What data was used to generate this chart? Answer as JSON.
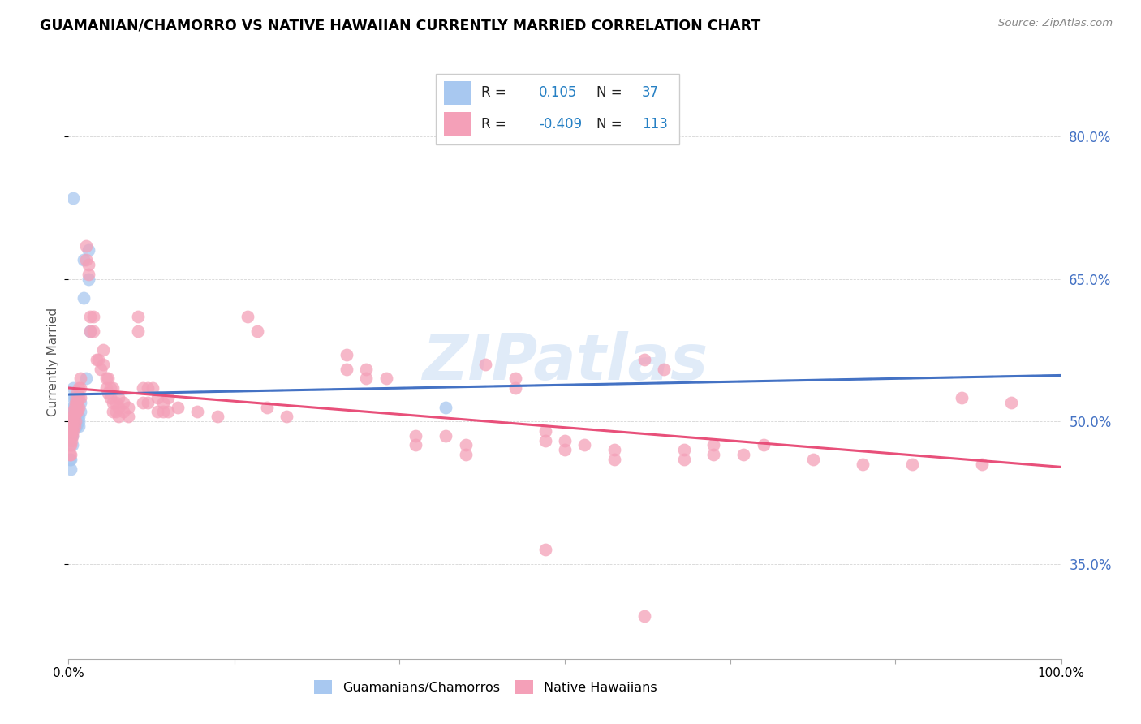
{
  "title": "GUAMANIAN/CHAMORRO VS NATIVE HAWAIIAN CURRENTLY MARRIED CORRELATION CHART",
  "source": "Source: ZipAtlas.com",
  "ylabel": "Currently Married",
  "xlim": [
    0.0,
    1.0
  ],
  "ylim": [
    0.25,
    0.875
  ],
  "yticks": [
    0.35,
    0.5,
    0.65,
    0.8
  ],
  "ytick_labels": [
    "35.0%",
    "50.0%",
    "65.0%",
    "80.0%"
  ],
  "xticks": [
    0.0,
    0.167,
    0.333,
    0.5,
    0.667,
    0.833,
    1.0
  ],
  "xtick_labels": [
    "0.0%",
    "",
    "",
    "",
    "",
    "",
    "100.0%"
  ],
  "blue_color": "#a8c8f0",
  "pink_color": "#f4a0b8",
  "trend_blue_solid": "#4472c4",
  "trend_blue_dash": "#a8c8f0",
  "trend_pink": "#e8507a",
  "watermark": "ZIPatlas",
  "blue_points": [
    [
      0.005,
      0.735
    ],
    [
      0.015,
      0.67
    ],
    [
      0.015,
      0.63
    ],
    [
      0.02,
      0.68
    ],
    [
      0.02,
      0.65
    ],
    [
      0.022,
      0.595
    ],
    [
      0.018,
      0.545
    ],
    [
      0.012,
      0.52
    ],
    [
      0.012,
      0.51
    ],
    [
      0.01,
      0.505
    ],
    [
      0.01,
      0.5
    ],
    [
      0.01,
      0.495
    ],
    [
      0.008,
      0.52
    ],
    [
      0.008,
      0.51
    ],
    [
      0.008,
      0.5
    ],
    [
      0.008,
      0.495
    ],
    [
      0.007,
      0.525
    ],
    [
      0.007,
      0.515
    ],
    [
      0.007,
      0.5
    ],
    [
      0.007,
      0.495
    ],
    [
      0.006,
      0.525
    ],
    [
      0.006,
      0.515
    ],
    [
      0.006,
      0.51
    ],
    [
      0.005,
      0.535
    ],
    [
      0.005,
      0.525
    ],
    [
      0.005,
      0.515
    ],
    [
      0.004,
      0.5
    ],
    [
      0.004,
      0.485
    ],
    [
      0.004,
      0.475
    ],
    [
      0.003,
      0.515
    ],
    [
      0.003,
      0.505
    ],
    [
      0.003,
      0.49
    ],
    [
      0.003,
      0.485
    ],
    [
      0.002,
      0.46
    ],
    [
      0.002,
      0.45
    ],
    [
      0.001,
      0.46
    ],
    [
      0.38,
      0.515
    ]
  ],
  "pink_points": [
    [
      0.018,
      0.685
    ],
    [
      0.018,
      0.67
    ],
    [
      0.02,
      0.665
    ],
    [
      0.02,
      0.655
    ],
    [
      0.022,
      0.61
    ],
    [
      0.022,
      0.595
    ],
    [
      0.025,
      0.61
    ],
    [
      0.025,
      0.595
    ],
    [
      0.028,
      0.565
    ],
    [
      0.03,
      0.565
    ],
    [
      0.032,
      0.555
    ],
    [
      0.035,
      0.575
    ],
    [
      0.035,
      0.56
    ],
    [
      0.038,
      0.545
    ],
    [
      0.038,
      0.535
    ],
    [
      0.04,
      0.545
    ],
    [
      0.04,
      0.53
    ],
    [
      0.042,
      0.535
    ],
    [
      0.042,
      0.525
    ],
    [
      0.045,
      0.535
    ],
    [
      0.045,
      0.52
    ],
    [
      0.045,
      0.51
    ],
    [
      0.048,
      0.52
    ],
    [
      0.048,
      0.51
    ],
    [
      0.05,
      0.525
    ],
    [
      0.05,
      0.515
    ],
    [
      0.05,
      0.505
    ],
    [
      0.055,
      0.52
    ],
    [
      0.055,
      0.51
    ],
    [
      0.06,
      0.515
    ],
    [
      0.06,
      0.505
    ],
    [
      0.012,
      0.545
    ],
    [
      0.012,
      0.535
    ],
    [
      0.012,
      0.525
    ],
    [
      0.01,
      0.535
    ],
    [
      0.01,
      0.525
    ],
    [
      0.01,
      0.515
    ],
    [
      0.009,
      0.53
    ],
    [
      0.009,
      0.52
    ],
    [
      0.009,
      0.51
    ],
    [
      0.008,
      0.525
    ],
    [
      0.008,
      0.515
    ],
    [
      0.008,
      0.51
    ],
    [
      0.007,
      0.52
    ],
    [
      0.007,
      0.51
    ],
    [
      0.007,
      0.5
    ],
    [
      0.006,
      0.515
    ],
    [
      0.006,
      0.505
    ],
    [
      0.006,
      0.495
    ],
    [
      0.005,
      0.51
    ],
    [
      0.005,
      0.5
    ],
    [
      0.005,
      0.49
    ],
    [
      0.004,
      0.505
    ],
    [
      0.004,
      0.495
    ],
    [
      0.004,
      0.485
    ],
    [
      0.003,
      0.5
    ],
    [
      0.003,
      0.49
    ],
    [
      0.003,
      0.48
    ],
    [
      0.002,
      0.485
    ],
    [
      0.002,
      0.475
    ],
    [
      0.002,
      0.465
    ],
    [
      0.001,
      0.475
    ],
    [
      0.001,
      0.465
    ],
    [
      0.07,
      0.61
    ],
    [
      0.07,
      0.595
    ],
    [
      0.075,
      0.535
    ],
    [
      0.075,
      0.52
    ],
    [
      0.08,
      0.535
    ],
    [
      0.08,
      0.52
    ],
    [
      0.085,
      0.535
    ],
    [
      0.09,
      0.525
    ],
    [
      0.09,
      0.51
    ],
    [
      0.095,
      0.52
    ],
    [
      0.095,
      0.51
    ],
    [
      0.1,
      0.525
    ],
    [
      0.1,
      0.51
    ],
    [
      0.11,
      0.515
    ],
    [
      0.13,
      0.51
    ],
    [
      0.15,
      0.505
    ],
    [
      0.18,
      0.61
    ],
    [
      0.19,
      0.595
    ],
    [
      0.2,
      0.515
    ],
    [
      0.22,
      0.505
    ],
    [
      0.28,
      0.57
    ],
    [
      0.28,
      0.555
    ],
    [
      0.3,
      0.555
    ],
    [
      0.3,
      0.545
    ],
    [
      0.32,
      0.545
    ],
    [
      0.35,
      0.485
    ],
    [
      0.35,
      0.475
    ],
    [
      0.38,
      0.485
    ],
    [
      0.4,
      0.475
    ],
    [
      0.4,
      0.465
    ],
    [
      0.42,
      0.56
    ],
    [
      0.45,
      0.545
    ],
    [
      0.45,
      0.535
    ],
    [
      0.48,
      0.49
    ],
    [
      0.48,
      0.48
    ],
    [
      0.5,
      0.48
    ],
    [
      0.5,
      0.47
    ],
    [
      0.52,
      0.475
    ],
    [
      0.55,
      0.47
    ],
    [
      0.55,
      0.46
    ],
    [
      0.58,
      0.565
    ],
    [
      0.6,
      0.555
    ],
    [
      0.62,
      0.47
    ],
    [
      0.62,
      0.46
    ],
    [
      0.65,
      0.475
    ],
    [
      0.65,
      0.465
    ],
    [
      0.68,
      0.465
    ],
    [
      0.7,
      0.475
    ],
    [
      0.75,
      0.46
    ],
    [
      0.8,
      0.455
    ],
    [
      0.85,
      0.455
    ],
    [
      0.9,
      0.525
    ],
    [
      0.92,
      0.455
    ],
    [
      0.95,
      0.52
    ],
    [
      0.48,
      0.365
    ],
    [
      0.58,
      0.295
    ]
  ]
}
